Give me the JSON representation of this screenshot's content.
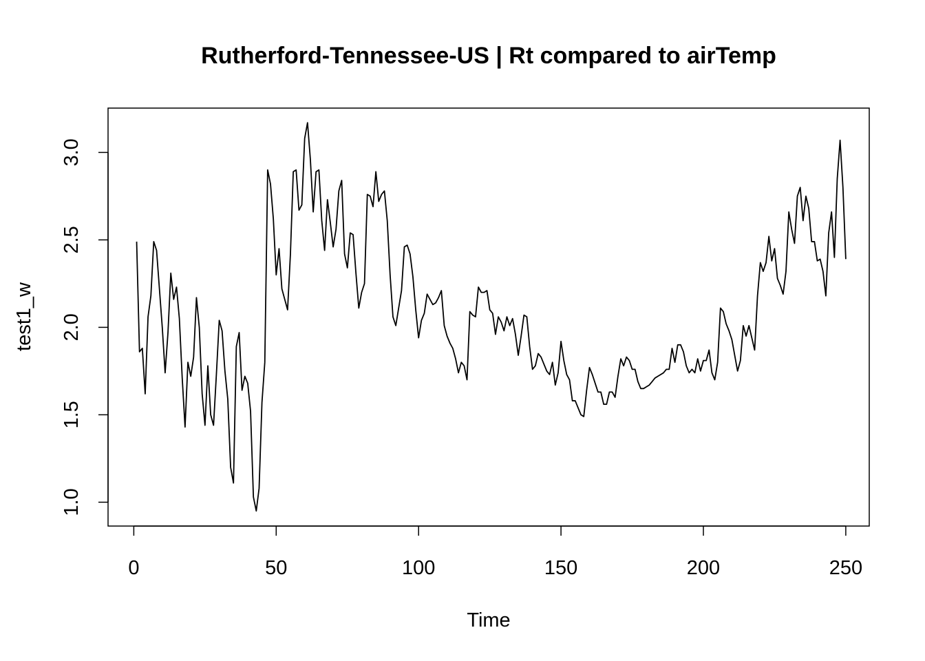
{
  "chart_data": {
    "type": "line",
    "title": "Rutherford-Tennessee-US | Rt compared to airTemp",
    "xlabel": "Time",
    "ylabel": "test1_w",
    "xlim": [
      1,
      248
    ],
    "ylim": [
      0.95,
      3.17
    ],
    "grid": false,
    "x_ticks": [
      0,
      50,
      100,
      150,
      200,
      250
    ],
    "x_tick_labels": [
      "0",
      "50",
      "100",
      "150",
      "200",
      "250"
    ],
    "y_ticks": [
      1.0,
      1.5,
      2.0,
      2.5,
      3.0
    ],
    "y_tick_labels": [
      "1.0",
      "1.5",
      "2.0",
      "2.5",
      "3.0"
    ],
    "series": [
      {
        "x_start": 1,
        "x_step": 1,
        "values": [
          2.49,
          1.86,
          1.88,
          1.62,
          2.06,
          2.18,
          2.49,
          2.44,
          2.22,
          2.0,
          1.74,
          1.97,
          2.31,
          2.16,
          2.23,
          2.05,
          1.71,
          1.43,
          1.8,
          1.72,
          1.83,
          2.17,
          2.0,
          1.62,
          1.44,
          1.78,
          1.5,
          1.44,
          1.73,
          2.04,
          1.98,
          1.75,
          1.59,
          1.2,
          1.11,
          1.89,
          1.97,
          1.64,
          1.72,
          1.68,
          1.52,
          1.03,
          0.95,
          1.08,
          1.57,
          1.8,
          2.9,
          2.82,
          2.62,
          2.3,
          2.45,
          2.22,
          2.16,
          2.1,
          2.42,
          2.89,
          2.9,
          2.67,
          2.7,
          3.08,
          3.17,
          2.96,
          2.66,
          2.89,
          2.9,
          2.61,
          2.44,
          2.73,
          2.6,
          2.46,
          2.56,
          2.78,
          2.84,
          2.42,
          2.34,
          2.54,
          2.53,
          2.31,
          2.11,
          2.2,
          2.25,
          2.76,
          2.75,
          2.69,
          2.89,
          2.72,
          2.76,
          2.78,
          2.61,
          2.3,
          2.06,
          2.01,
          2.11,
          2.21,
          2.46,
          2.47,
          2.42,
          2.29,
          2.1,
          1.94,
          2.04,
          2.08,
          2.19,
          2.16,
          2.13,
          2.14,
          2.17,
          2.21,
          2.01,
          1.95,
          1.91,
          1.88,
          1.82,
          1.74,
          1.8,
          1.78,
          1.7,
          2.09,
          2.07,
          2.06,
          2.23,
          2.2,
          2.2,
          2.21,
          2.1,
          2.08,
          1.96,
          2.06,
          2.03,
          1.98,
          2.06,
          2.01,
          2.05,
          1.96,
          1.84,
          1.95,
          2.07,
          2.06,
          1.89,
          1.76,
          1.78,
          1.85,
          1.83,
          1.79,
          1.75,
          1.73,
          1.8,
          1.67,
          1.74,
          1.92,
          1.81,
          1.73,
          1.7,
          1.58,
          1.58,
          1.54,
          1.5,
          1.49,
          1.64,
          1.77,
          1.73,
          1.68,
          1.63,
          1.63,
          1.56,
          1.56,
          1.63,
          1.63,
          1.6,
          1.72,
          1.82,
          1.78,
          1.83,
          1.81,
          1.76,
          1.76,
          1.69,
          1.65,
          1.65,
          1.66,
          1.67,
          1.69,
          1.71,
          1.72,
          1.73,
          1.74,
          1.76,
          1.76,
          1.88,
          1.8,
          1.9,
          1.9,
          1.86,
          1.78,
          1.74,
          1.76,
          1.74,
          1.82,
          1.75,
          1.81,
          1.81,
          1.87,
          1.74,
          1.7,
          1.8,
          2.11,
          2.09,
          2.02,
          1.98,
          1.93,
          1.84,
          1.75,
          1.81,
          2.01,
          1.95,
          2.01,
          1.94,
          1.87,
          2.18,
          2.37,
          2.32,
          2.37,
          2.52,
          2.38,
          2.45,
          2.28,
          2.24,
          2.19,
          2.32,
          2.66,
          2.56,
          2.48,
          2.75,
          2.8,
          2.61,
          2.75,
          2.68,
          2.49,
          2.49,
          2.38,
          2.39,
          2.32,
          2.18,
          2.54,
          2.66,
          2.4,
          2.85,
          3.07,
          2.8,
          2.39
        ]
      }
    ]
  }
}
